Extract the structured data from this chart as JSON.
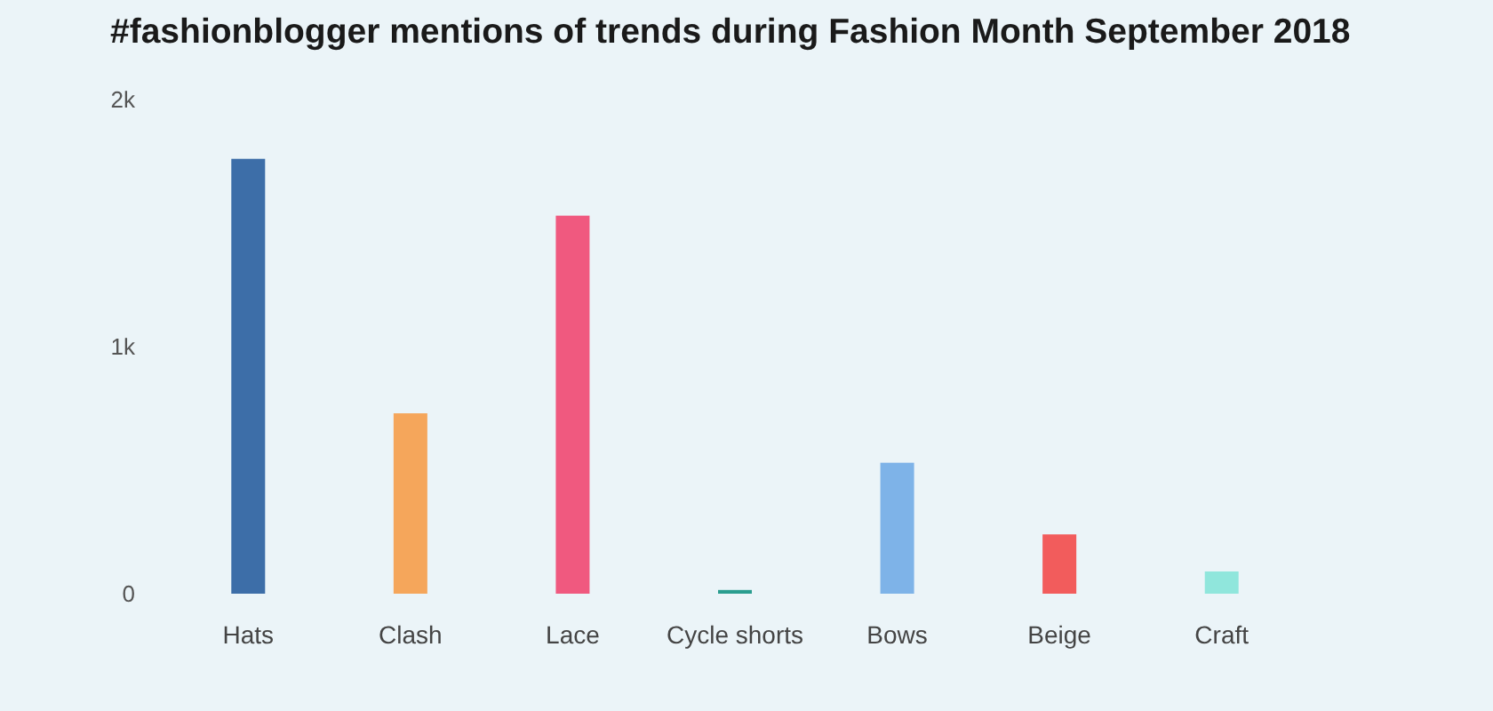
{
  "chart_data": {
    "type": "bar",
    "title": "#fashionblogger mentions of trends during Fashion Month September 2018",
    "categories": [
      "Hats",
      "Clash",
      "Lace",
      "Cycle shorts",
      "Bows",
      "Beige",
      "Craft"
    ],
    "values": [
      1760,
      730,
      1530,
      15,
      530,
      240,
      90
    ],
    "colors": [
      "#3d6ea8",
      "#f5a65b",
      "#f0597f",
      "#2a9d8f",
      "#7eb3e8",
      "#f25c5c",
      "#90e6dc"
    ],
    "ylim": [
      0,
      2000
    ],
    "yticks": [
      0,
      {
        "value": 1000,
        "label": "1k"
      },
      {
        "value": 2000,
        "label": "2k"
      }
    ]
  }
}
